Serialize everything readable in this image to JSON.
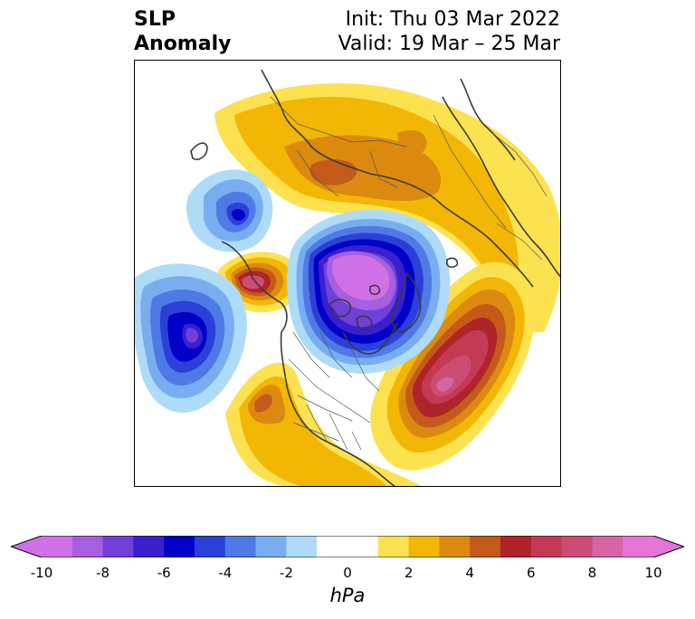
{
  "title": {
    "left_line1": "SLP",
    "left_line2": "Anomaly",
    "right_line1": "Init: Thu 03 Mar 2022",
    "right_line2": "Valid: 19 Mar – 25 Mar"
  },
  "colorbar": {
    "unit": "hPa",
    "tick_labels": [
      "-10",
      "-8",
      "-6",
      "-4",
      "-2",
      "0",
      "2",
      "4",
      "6",
      "8",
      "10"
    ],
    "range": [
      -10,
      10
    ],
    "step": 1,
    "extend": "both",
    "low_extension_color": "#d070e6",
    "high_extension_color": "#e673d8",
    "colors": [
      "#d070e6",
      "#a55fe0",
      "#7040d8",
      "#3a1fcf",
      "#0000c8",
      "#2b40d8",
      "#4f7ae6",
      "#78aef0",
      "#aedcf8",
      "#ffffff",
      "#ffffff",
      "#fde24f",
      "#f2b705",
      "#db8a0f",
      "#c45a19",
      "#b0232a",
      "#c43a55",
      "#cc4d74",
      "#d665a5",
      "#e673d8"
    ]
  },
  "map": {
    "projection": "north-polar stereographic",
    "features": [
      "coastlines",
      "country-borders",
      "us-state-borders",
      "canada-province-borders"
    ]
  }
}
